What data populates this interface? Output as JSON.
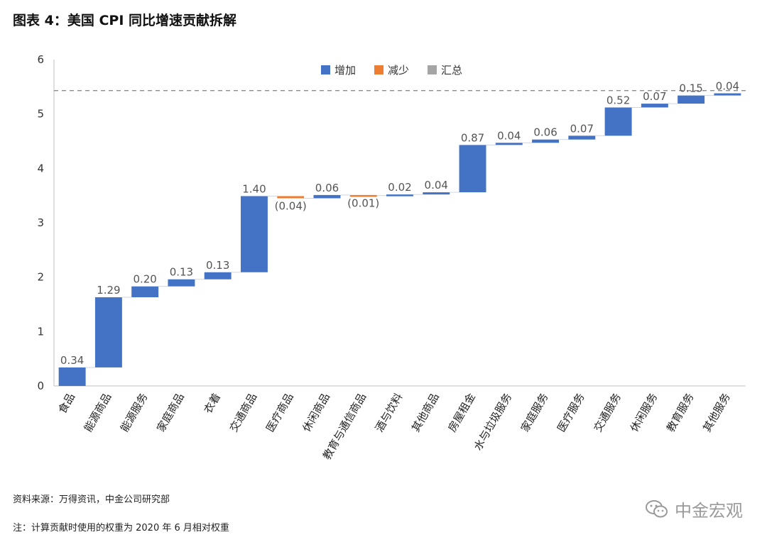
{
  "title": "图表 4：美国 CPI 同比增速贡献拆解",
  "source": "资料来源：万得资讯，中金公司研究部",
  "note": "注：计算贡献时使用的权重为 2020 年 6 月相对权重",
  "watermark": "中金宏观",
  "colors": {
    "increase": "#4472C4",
    "decrease": "#ED7D31",
    "total": "#A5A5A5",
    "reference_line": "#8c8c8c"
  },
  "chart_data": {
    "type": "bar",
    "subtype": "waterfall",
    "title": "",
    "xlabel": "",
    "ylabel": "",
    "ylim": [
      0,
      6
    ],
    "yticks": [
      0,
      1,
      2,
      3,
      4,
      5,
      6
    ],
    "grid": false,
    "legend_position": "top-center",
    "legend": [
      {
        "label": "增加",
        "key": "increase"
      },
      {
        "label": "减少",
        "key": "decrease"
      },
      {
        "label": "汇总",
        "key": "total"
      }
    ],
    "reference_line": {
      "y": 5.43,
      "style": "dashed"
    },
    "categories": [
      "食品",
      "能源商品",
      "能源服务",
      "家庭商品",
      "衣着",
      "交通商品",
      "医疗商品",
      "休闲商品",
      "教育与通信商品",
      "酒与饮料",
      "其他商品",
      "房屋租金",
      "水与垃圾服务",
      "家庭服务",
      "医疗服务",
      "交通服务",
      "休闲服务",
      "教育服务",
      "其他服务"
    ],
    "values": [
      0.34,
      1.29,
      0.2,
      0.13,
      0.13,
      1.4,
      -0.04,
      0.06,
      -0.01,
      0.02,
      0.04,
      0.87,
      0.04,
      0.06,
      0.07,
      0.52,
      0.07,
      0.15,
      0.04
    ],
    "labels": [
      "0.34",
      "1.29",
      "0.20",
      "0.13",
      "0.13",
      "1.40",
      "(0.04)",
      "0.06",
      "(0.01)",
      "0.02",
      "0.04",
      "0.87",
      "0.04",
      "0.06",
      "0.07",
      "0.52",
      "0.07",
      "0.15",
      "0.04"
    ]
  }
}
